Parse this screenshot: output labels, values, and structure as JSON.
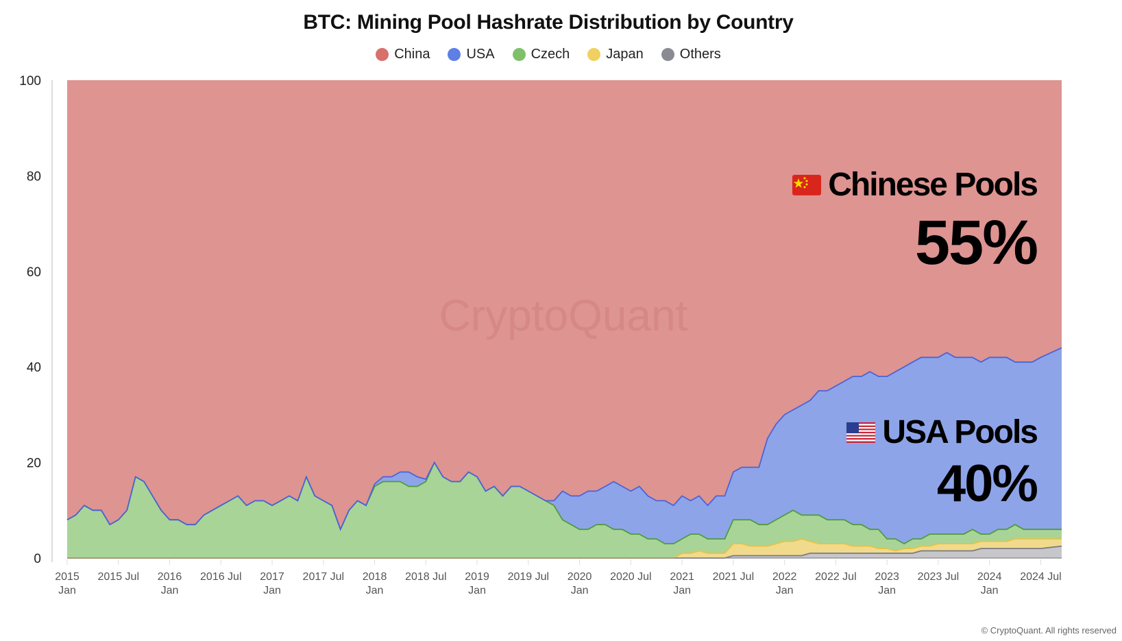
{
  "chart_data": {
    "type": "area",
    "stacked": true,
    "title": "BTC: Mining Pool Hashrate Distribution by Country",
    "xlabel": "",
    "ylabel": "",
    "ylim": [
      0,
      100
    ],
    "yticks": [
      "0",
      "20",
      "40",
      "60",
      "80",
      "100"
    ],
    "x_start": "2015-01",
    "x_step": "month",
    "xticks": [
      [
        "2015",
        "Jan"
      ],
      [
        "2015 Jul",
        ""
      ],
      [
        "2016",
        "Jan"
      ],
      [
        "2016 Jul",
        ""
      ],
      [
        "2017",
        "Jan"
      ],
      [
        "2017 Jul",
        ""
      ],
      [
        "2018",
        "Jan"
      ],
      [
        "2018 Jul",
        ""
      ],
      [
        "2019",
        "Jan"
      ],
      [
        "2019 Jul",
        ""
      ],
      [
        "2020",
        "Jan"
      ],
      [
        "2020 Jul",
        ""
      ],
      [
        "2021",
        "Jan"
      ],
      [
        "2021 Jul",
        ""
      ],
      [
        "2022",
        "Jan"
      ],
      [
        "2022 Jul",
        ""
      ],
      [
        "2023",
        "Jan"
      ],
      [
        "2023 Jul",
        ""
      ],
      [
        "2024",
        "Jan"
      ],
      [
        "2024 Jul",
        ""
      ]
    ],
    "legend_position": "top-center",
    "series": [
      {
        "name": "Others",
        "color": "#8a8a92",
        "fill": "#c6c6cb",
        "line": "#7a7a82",
        "values": [
          0,
          0,
          0,
          0,
          0,
          0,
          0,
          0,
          0,
          0,
          0,
          0,
          0,
          0,
          0,
          0,
          0,
          0,
          0,
          0,
          0,
          0,
          0,
          0,
          0,
          0,
          0,
          0,
          0,
          0,
          0,
          0,
          0,
          0,
          0,
          0,
          0,
          0,
          0,
          0,
          0,
          0,
          0,
          0,
          0,
          0,
          0,
          0,
          0,
          0,
          0,
          0,
          0,
          0,
          0,
          0,
          0,
          0,
          0,
          0,
          0,
          0,
          0,
          0,
          0,
          0,
          0,
          0,
          0,
          0,
          0,
          0,
          0,
          0,
          0,
          0,
          0,
          0,
          0.5,
          0.5,
          0.5,
          0.5,
          0.5,
          0.5,
          0.5,
          0.5,
          0.5,
          1,
          1,
          1,
          1,
          1,
          1,
          1,
          1,
          1,
          1,
          1,
          1,
          1,
          1.5,
          1.5,
          1.5,
          1.5,
          1.5,
          1.5,
          1.5,
          2,
          2,
          2,
          2,
          2,
          2,
          2,
          2,
          2.5
        ]
      },
      {
        "name": "Japan",
        "color": "#f0d060",
        "fill": "#f1da8c",
        "line": "#e6c245",
        "values": [
          0,
          0,
          0,
          0,
          0,
          0,
          0,
          0,
          0,
          0,
          0,
          0,
          0,
          0,
          0,
          0,
          0,
          0,
          0,
          0,
          0,
          0,
          0,
          0,
          0,
          0,
          0,
          0,
          0,
          0,
          0,
          0,
          0,
          0,
          0,
          0,
          0,
          0,
          0,
          0,
          0,
          0,
          0,
          0,
          0,
          0,
          0,
          0,
          0,
          0,
          0,
          0,
          0,
          0,
          0,
          0,
          0,
          0,
          0,
          0,
          0,
          0,
          0,
          0,
          0,
          0,
          0,
          0,
          0,
          0,
          0,
          0,
          1,
          1,
          1.5,
          1,
          1,
          1,
          2.5,
          2.5,
          2,
          2,
          2,
          2.5,
          3,
          3,
          3.5,
          2.5,
          2,
          2,
          2,
          2,
          1.5,
          1.5,
          1.5,
          1,
          1,
          0.5,
          1,
          1,
          1,
          1,
          1.5,
          1.5,
          1.5,
          1.5,
          1.5,
          1.5,
          1.5,
          1.5,
          1.5,
          2,
          2,
          2,
          2,
          1.5
        ]
      },
      {
        "name": "Czech",
        "color": "#7fc06a",
        "fill": "#a9d497",
        "line": "#4e9c3e",
        "values": [
          8,
          9,
          11,
          10,
          10,
          7,
          8,
          10,
          17,
          16,
          13,
          10,
          8,
          8,
          7,
          7,
          9,
          10,
          11,
          12,
          13,
          11,
          12,
          12,
          11,
          12,
          13,
          12,
          17,
          13,
          12,
          11,
          6,
          10,
          12,
          11,
          15,
          16,
          16,
          16,
          15,
          15,
          16,
          20,
          17,
          16,
          16,
          18,
          17,
          14,
          15,
          13,
          15,
          15,
          14,
          13,
          12,
          11,
          8,
          7,
          6,
          6,
          7,
          7,
          6,
          6,
          5,
          5,
          4,
          4,
          3,
          3,
          3,
          4,
          3.5,
          3,
          3,
          3,
          5,
          5,
          5.5,
          4.5,
          4.5,
          5,
          5.5,
          6.5,
          5,
          5.5,
          6,
          5,
          5,
          5,
          4.5,
          4.5,
          3.5,
          4,
          2,
          2.5,
          1,
          2,
          1.5,
          2.5,
          2,
          2,
          2,
          2,
          3,
          1.5,
          1.5,
          2.5,
          2.5,
          3,
          2,
          2,
          2,
          2
        ]
      },
      {
        "name": "USA",
        "color": "#5d7fe6",
        "fill": "#8ea4e9",
        "line": "#4a63d8",
        "values": [
          0,
          0,
          0,
          0,
          0,
          0,
          0,
          0,
          0,
          0,
          0,
          0,
          0,
          0,
          0,
          0,
          0,
          0,
          0,
          0,
          0,
          0,
          0,
          0,
          0,
          0,
          0,
          0,
          0,
          0,
          0,
          0,
          0,
          0,
          0,
          0,
          0.5,
          1,
          1,
          2,
          3,
          2,
          0.5,
          0,
          0,
          0,
          0,
          0,
          0,
          0,
          0,
          0,
          0,
          0,
          0,
          0,
          0,
          1,
          6,
          6,
          7,
          8,
          7,
          8,
          10,
          9,
          9,
          10,
          9,
          8,
          9,
          8,
          9,
          7,
          8,
          7,
          9,
          9,
          10,
          11,
          11,
          12,
          18,
          20,
          21,
          21,
          23,
          24,
          26,
          27,
          28,
          29,
          31,
          31,
          33,
          32,
          34,
          35,
          37,
          37,
          38,
          37,
          37,
          38,
          37,
          37,
          36,
          36,
          37,
          36,
          36,
          34,
          35,
          35,
          36,
          38
        ]
      },
      {
        "name": "China",
        "color": "#d8706c",
        "fill": "#de9491",
        "line": "#de9491",
        "values": "remainder to 100"
      }
    ]
  },
  "annotations": {
    "chinese_label": "Chinese Pools",
    "chinese_value": "55%",
    "usa_label": "USA Pools",
    "usa_value": "40%"
  },
  "watermark": "CryptoQuant",
  "copyright": "© CryptoQuant. All rights reserved"
}
